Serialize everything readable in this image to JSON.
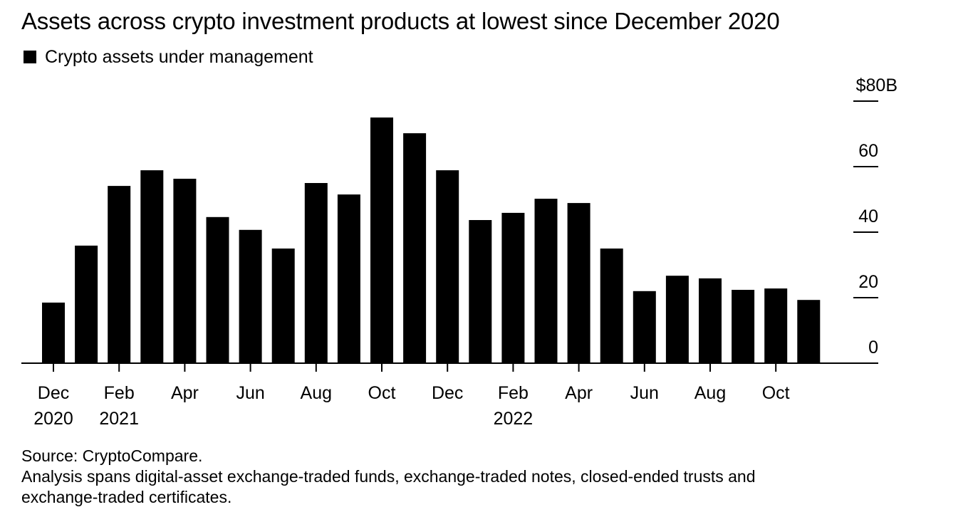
{
  "chart_data": {
    "type": "bar",
    "title": "Assets across crypto investment products at lowest since December 2020",
    "legend": [
      {
        "label": "Crypto assets under management",
        "color": "#000000"
      }
    ],
    "legend_position": "top-left",
    "xlabel": "",
    "ylabel": "",
    "y_unit_label": "$80B",
    "ylim": [
      0,
      80
    ],
    "yticks": [
      0,
      20,
      40,
      60,
      80
    ],
    "ytick_labels": [
      "0",
      "20",
      "40",
      "60",
      "$80B"
    ],
    "y_axis_side": "right",
    "grid": false,
    "categories": [
      "Dec 2020",
      "Jan 2021",
      "Feb 2021",
      "Mar 2021",
      "Apr 2021",
      "May 2021",
      "Jun 2021",
      "Jul 2021",
      "Aug 2021",
      "Sep 2021",
      "Oct 2021",
      "Nov 2021",
      "Dec 2021",
      "Jan 2022",
      "Feb 2022",
      "Mar 2022",
      "Apr 2022",
      "May 2022",
      "Jun 2022",
      "Jul 2022",
      "Aug 2022",
      "Sep 2022",
      "Oct 2022",
      "Nov 2022"
    ],
    "values": [
      18.5,
      35.9,
      54.1,
      58.9,
      56.3,
      44.6,
      40.7,
      35.0,
      55.0,
      51.5,
      75.0,
      70.2,
      58.9,
      43.7,
      45.9,
      50.2,
      48.9,
      35.0,
      22.0,
      26.7,
      25.9,
      22.4,
      22.8,
      19.3
    ],
    "xtick_labels": [
      {
        "index": 0,
        "month": "Dec",
        "year": "2020"
      },
      {
        "index": 2,
        "month": "Feb",
        "year": "2021"
      },
      {
        "index": 4,
        "month": "Apr",
        "year": ""
      },
      {
        "index": 6,
        "month": "Jun",
        "year": ""
      },
      {
        "index": 8,
        "month": "Aug",
        "year": ""
      },
      {
        "index": 10,
        "month": "Oct",
        "year": ""
      },
      {
        "index": 12,
        "month": "Dec",
        "year": ""
      },
      {
        "index": 14,
        "month": "Feb",
        "year": "2022"
      },
      {
        "index": 16,
        "month": "Apr",
        "year": ""
      },
      {
        "index": 18,
        "month": "Jun",
        "year": ""
      },
      {
        "index": 20,
        "month": "Aug",
        "year": ""
      },
      {
        "index": 22,
        "month": "Oct",
        "year": ""
      }
    ],
    "bar_color": "#000000"
  },
  "footer": {
    "source": "Source: CryptoCompare.",
    "note_line1": "Analysis spans digital-asset exchange-traded funds, exchange-traded notes, closed-ended trusts and",
    "note_line2": "exchange-traded certificates."
  }
}
